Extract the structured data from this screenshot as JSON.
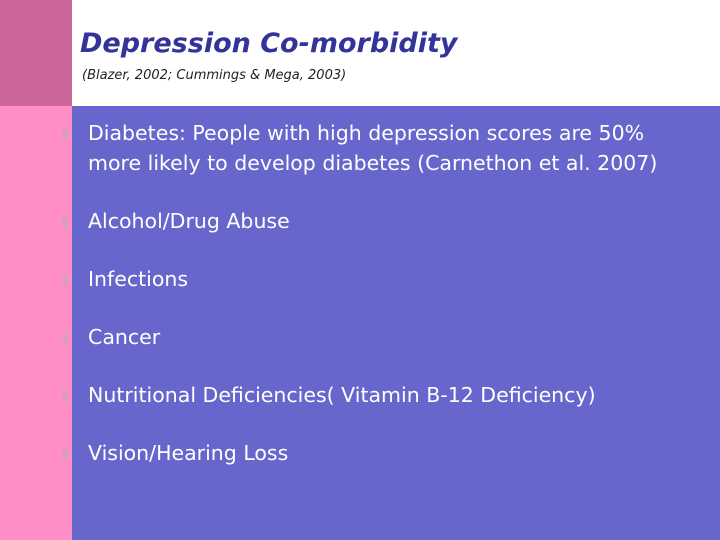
{
  "slide": {
    "title": "Depression Co-morbidity",
    "subtitle": "(Blazer, 2002; Cummings & Mega, 2003)",
    "bullet_marker": "§",
    "bullets": [
      "Diabetes: People with high depression scores are 50% more likely to develop diabetes (Carnethon et al. 2007)",
      "Alcohol/Drug Abuse",
      "Infections",
      "Cancer",
      "Nutritional Deficiencies( Vitamin B-12 Deficiency)",
      "Vision/Hearing Loss"
    ]
  },
  "colors": {
    "background": "#6666cc",
    "left_strip": "#ff8ec6",
    "corner_block": "#cc6699",
    "header": "#ffffff",
    "title": "#333399",
    "bullet_text": "#ffffff",
    "bullet_marker": "#b0b0b0"
  }
}
